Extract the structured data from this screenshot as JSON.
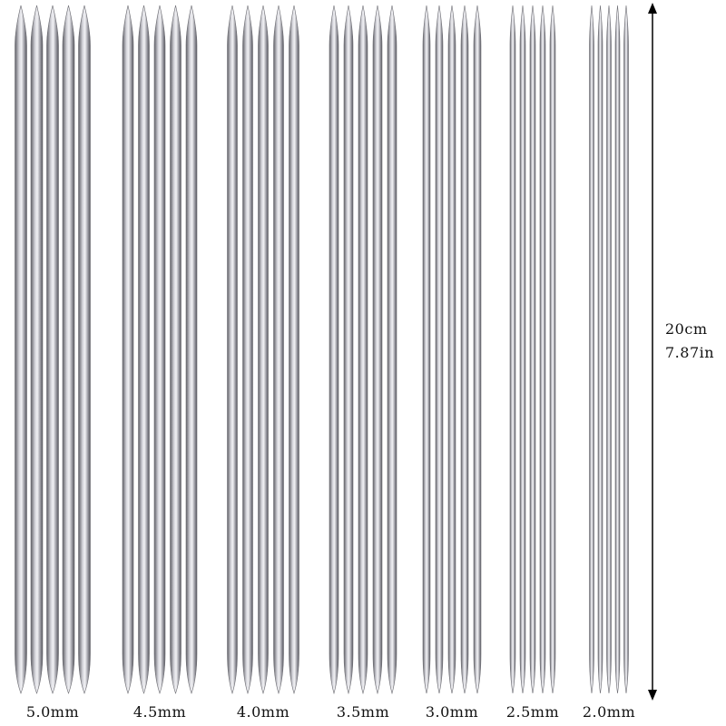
{
  "needle_sets": [
    {
      "size_label": "5.0mm",
      "count": 5
    },
    {
      "size_label": "4.5mm",
      "count": 5
    },
    {
      "size_label": "4.0mm",
      "count": 5
    },
    {
      "size_label": "3.5mm",
      "count": 5
    },
    {
      "size_label": "3.0mm",
      "count": 5
    },
    {
      "size_label": "2.5mm",
      "count": 5
    },
    {
      "size_label": "2.0mm",
      "count": 5
    }
  ],
  "length_dimension": {
    "metric": "20cm",
    "imperial": "7.87in"
  },
  "colors": {
    "background": "#ffffff",
    "steel_dark": "#6e6e74",
    "steel_light": "#d9d9de",
    "arrow": "#000000",
    "text": "#111111"
  }
}
